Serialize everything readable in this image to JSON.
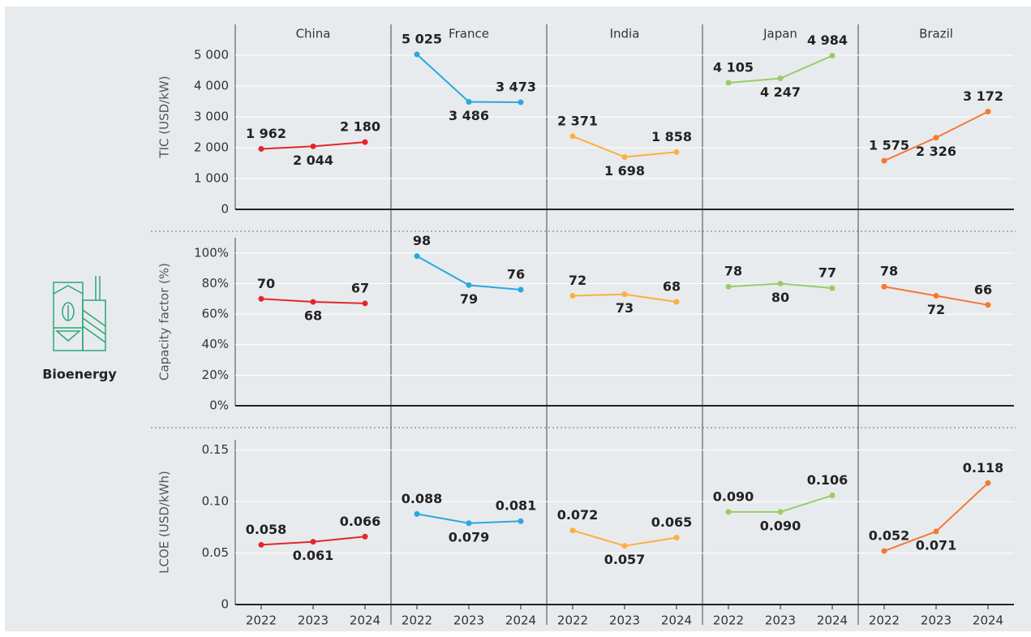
{
  "label": "Bioenergy",
  "chart_data": {
    "type": "line",
    "panels": [
      "China",
      "France",
      "India",
      "Japan",
      "Brazil"
    ],
    "colors": [
      "#e3262d",
      "#29a8e0",
      "#fbb040",
      "#99cc66",
      "#f47a30"
    ],
    "categories": [
      "2022",
      "2023",
      "2024"
    ],
    "rows": [
      {
        "ylabel": "TIC (USD/kW)",
        "ylim": [
          0,
          6000
        ],
        "yticks": [
          0,
          {
            "value": 1000,
            "label": "1 000"
          },
          {
            "value": 2000,
            "label": "2 000"
          },
          {
            "value": 3000,
            "label": "3 000"
          },
          {
            "value": 4000,
            "label": "4 000"
          },
          {
            "value": 5000,
            "label": "5 000"
          }
        ],
        "series": [
          {
            "values": [
              1962,
              2044,
              2180
            ],
            "value_labels": [
              "1 962",
              "2 044",
              "2 180"
            ]
          },
          {
            "values": [
              5025,
              3486,
              3473
            ],
            "value_labels": [
              "5 025",
              "3 486",
              "3 473"
            ]
          },
          {
            "values": [
              2371,
              1698,
              1858
            ],
            "value_labels": [
              "2 371",
              "1 698",
              "1 858"
            ]
          },
          {
            "values": [
              4105,
              4247,
              4984
            ],
            "value_labels": [
              "4 105",
              "4 247",
              "4 984"
            ]
          },
          {
            "values": [
              1575,
              2326,
              3172
            ],
            "value_labels": [
              "1 575",
              "2 326",
              "3 172"
            ]
          }
        ]
      },
      {
        "ylabel": "Capacity factor (%)",
        "ylim": [
          0,
          110
        ],
        "yticks": [
          {
            "value": 0,
            "label": "0%"
          },
          {
            "value": 20,
            "label": "20%"
          },
          {
            "value": 40,
            "label": "40%"
          },
          {
            "value": 60,
            "label": "60%"
          },
          {
            "value": 80,
            "label": "80%"
          },
          {
            "value": 100,
            "label": "100%"
          }
        ],
        "series": [
          {
            "values": [
              70,
              68,
              67
            ],
            "value_labels": [
              "70",
              "68",
              "67"
            ]
          },
          {
            "values": [
              98,
              79,
              76
            ],
            "value_labels": [
              "98",
              "79",
              "76"
            ]
          },
          {
            "values": [
              72,
              73,
              68
            ],
            "value_labels": [
              "72",
              "73",
              "68"
            ]
          },
          {
            "values": [
              78,
              80,
              77
            ],
            "value_labels": [
              "78",
              "80",
              "77"
            ]
          },
          {
            "values": [
              78,
              72,
              66
            ],
            "value_labels": [
              "78",
              "72",
              "66"
            ]
          }
        ]
      },
      {
        "ylabel": "LCOE (USD/kWh)",
        "ylim": [
          0,
          0.16
        ],
        "yticks": [
          0,
          0.05,
          {
            "value": 0.1,
            "label": "0.10"
          },
          0.15
        ],
        "series": [
          {
            "values": [
              0.058,
              0.061,
              0.066
            ],
            "value_labels": [
              "0.058",
              "0.061",
              "0.066"
            ]
          },
          {
            "values": [
              0.088,
              0.079,
              0.081
            ],
            "value_labels": [
              "0.088",
              "0.079",
              "0.081"
            ]
          },
          {
            "values": [
              0.072,
              0.057,
              0.065
            ],
            "value_labels": [
              "0.072",
              "0.057",
              "0.065"
            ]
          },
          {
            "values": [
              0.09,
              0.09,
              0.106
            ],
            "value_labels": [
              "0.090",
              "0.090",
              "0.106"
            ]
          },
          {
            "values": [
              0.052,
              0.071,
              0.118
            ],
            "value_labels": [
              "0.052",
              "0.071",
              "0.118"
            ]
          }
        ]
      }
    ]
  }
}
